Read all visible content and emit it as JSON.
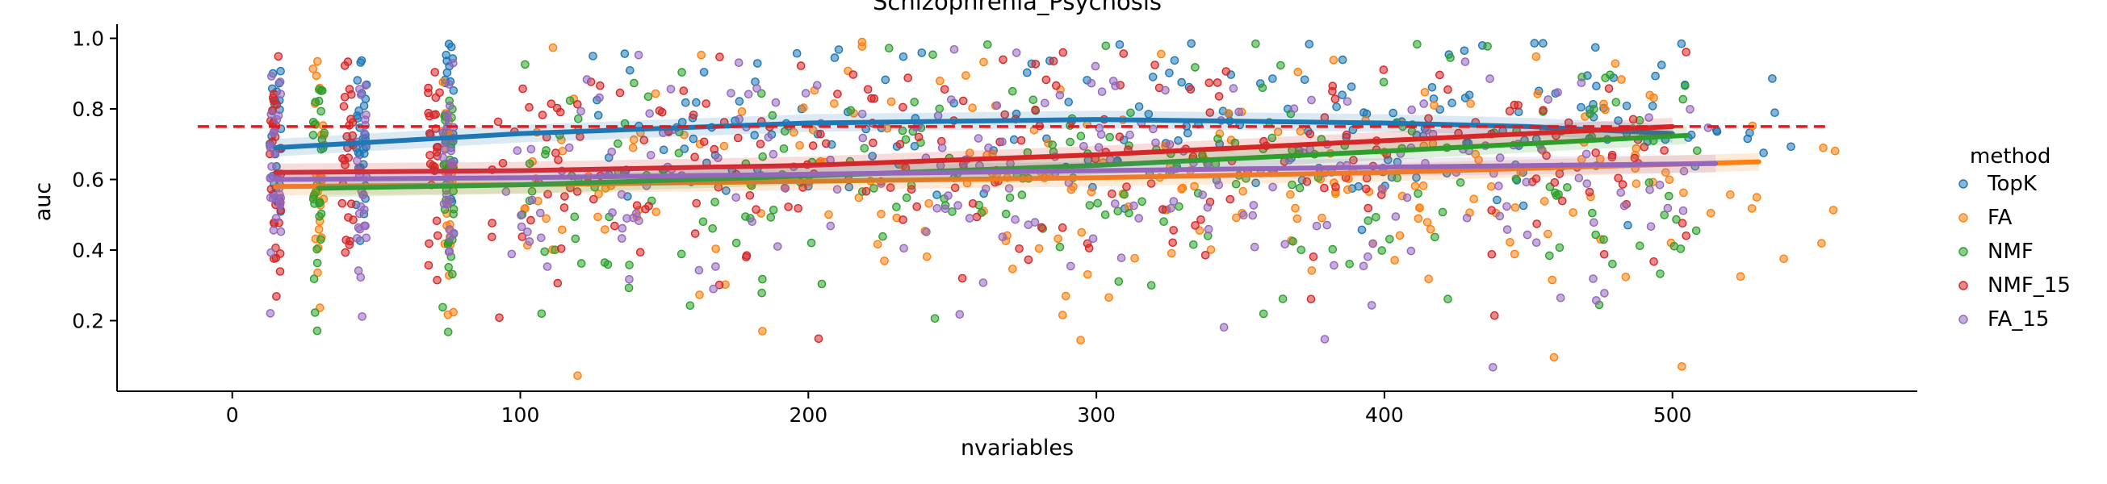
{
  "chart_data": {
    "type": "scatter",
    "title": "Schizophrenia_Psychosis",
    "xlabel": "nvariables",
    "ylabel": "auc",
    "xlim": [
      -40,
      585
    ],
    "ylim": [
      0.0,
      1.04
    ],
    "xticks": [
      0,
      100,
      200,
      300,
      400,
      500
    ],
    "yticks": [
      0.2,
      0.4,
      0.6,
      0.8,
      1.0
    ],
    "xtick_labels": [
      "0",
      "100",
      "200",
      "300",
      "400",
      "500"
    ],
    "ytick_labels": [
      "0.2",
      "0.4",
      "0.6",
      "0.8",
      "1.0"
    ],
    "grid": false,
    "reference_line": {
      "y": 0.75,
      "x_range": [
        -12,
        553
      ],
      "color": "#e31a1c",
      "style": "dashed"
    },
    "legend": {
      "title": "method",
      "placement": "right"
    },
    "point_x_jitter": 4,
    "series": [
      {
        "name": "TopK",
        "color": "#1f77b4",
        "x_columns": [
          15,
          45,
          75,
          150,
          215,
          300,
          350,
          400,
          450,
          500
        ],
        "x_spread": [
          0,
          0,
          0,
          50,
          80,
          100,
          100,
          100,
          100,
          90
        ],
        "y_mean": 0.74,
        "y_sd": 0.13,
        "points_per_column": 28,
        "trend": {
          "x": [
            15,
            100,
            200,
            300,
            400,
            450,
            500
          ],
          "y": [
            0.69,
            0.73,
            0.76,
            0.77,
            0.76,
            0.75,
            0.73
          ]
        }
      },
      {
        "name": "FA",
        "color": "#ff7f0e",
        "x_columns": [
          30,
          75,
          125,
          200,
          250,
          300,
          350,
          400,
          450,
          500
        ],
        "x_spread": [
          0,
          0,
          50,
          90,
          100,
          100,
          100,
          100,
          100,
          120
        ],
        "y_mean": 0.58,
        "y_sd": 0.17,
        "points_per_column": 28,
        "trend": {
          "x": [
            15,
            100,
            200,
            300,
            400,
            530
          ],
          "y": [
            0.58,
            0.585,
            0.595,
            0.605,
            0.62,
            0.65
          ]
        }
      },
      {
        "name": "NMF",
        "color": "#2ca02c",
        "x_columns": [
          30,
          75,
          120,
          175,
          225,
          275,
          325,
          375,
          425,
          480
        ],
        "x_spread": [
          0,
          0,
          40,
          80,
          100,
          100,
          100,
          100,
          100,
          60
        ],
        "y_mean": 0.6,
        "y_sd": 0.17,
        "points_per_column": 28,
        "trend": {
          "x": [
            30,
            100,
            200,
            300,
            400,
            505
          ],
          "y": [
            0.575,
            0.585,
            0.61,
            0.64,
            0.68,
            0.725
          ]
        }
      },
      {
        "name": "NMF_15",
        "color": "#d62728",
        "x_columns": [
          15,
          40,
          70,
          110,
          150,
          200,
          250,
          300,
          350,
          420,
          475
        ],
        "x_spread": [
          0,
          0,
          0,
          40,
          60,
          80,
          100,
          100,
          100,
          100,
          60
        ],
        "y_mean": 0.63,
        "y_sd": 0.17,
        "points_per_column": 28,
        "trend": {
          "x": [
            15,
            100,
            200,
            300,
            400,
            500
          ],
          "y": [
            0.62,
            0.625,
            0.64,
            0.67,
            0.71,
            0.75
          ]
        }
      },
      {
        "name": "FA_15",
        "color": "#9467bd",
        "x_columns": [
          15,
          45,
          75,
          120,
          175,
          225,
          275,
          325,
          375,
          425,
          475
        ],
        "x_spread": [
          0,
          0,
          0,
          50,
          80,
          100,
          100,
          100,
          100,
          100,
          80
        ],
        "y_mean": 0.6,
        "y_sd": 0.16,
        "points_per_column": 28,
        "trend": {
          "x": [
            15,
            100,
            200,
            300,
            400,
            515
          ],
          "y": [
            0.6,
            0.605,
            0.615,
            0.625,
            0.635,
            0.645
          ]
        }
      }
    ]
  }
}
